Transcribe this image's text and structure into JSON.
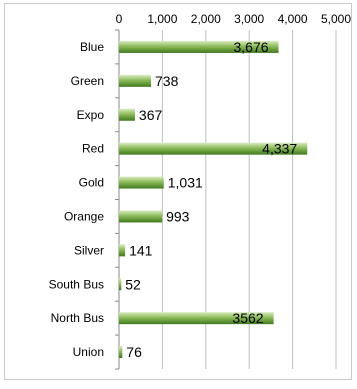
{
  "chart_data": {
    "type": "bar",
    "orientation": "horizontal",
    "categories": [
      "Blue",
      "Green",
      "Expo",
      "Red",
      "Gold",
      "Orange",
      "Silver",
      "South Bus",
      "North Bus",
      "Union"
    ],
    "values": [
      3676,
      738,
      367,
      4337,
      1031,
      993,
      141,
      52,
      3562,
      76
    ],
    "data_labels": [
      "3,676",
      "738",
      "367",
      "4,337",
      "1,031",
      "993",
      "141",
      "52",
      "3562",
      "76"
    ],
    "xlim": [
      0,
      5000
    ],
    "x_ticks": [
      0,
      1000,
      2000,
      3000,
      4000,
      5000
    ],
    "x_tick_labels": [
      "0",
      "1,000",
      "2,000",
      "3,000",
      "4,000",
      "5,000"
    ],
    "x_axis_position": "top",
    "grid": true,
    "legend": "none",
    "colors": {
      "bar_light": "#cfe6b0",
      "bar_dark": "#3f7a1e",
      "grid": "#c0c0c0",
      "frame": "#c8c8c8"
    }
  }
}
